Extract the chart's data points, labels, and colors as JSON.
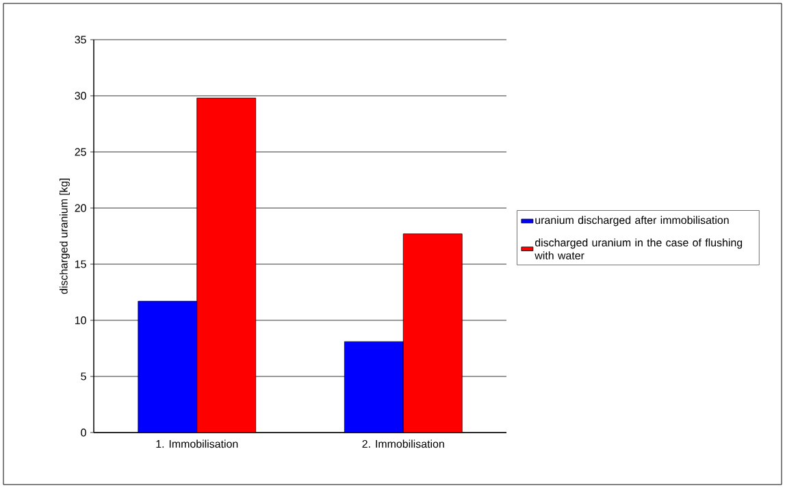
{
  "chart_data": {
    "type": "bar",
    "ylabel": "discharged uranium [kg]",
    "categories": [
      "1. Immobilisation",
      "2. Immobilisation"
    ],
    "series": [
      {
        "name": "uranium discharged after immobilisation",
        "color": "#0000ff",
        "values": [
          11.7,
          8.1
        ]
      },
      {
        "name": "discharged uranium in the case of flushing with water",
        "color": "#ff0000",
        "values": [
          29.8,
          17.7
        ]
      }
    ],
    "ylim": [
      0,
      35
    ],
    "yticks": [
      0,
      5,
      10,
      15,
      20,
      25,
      30,
      35
    ],
    "grid": "y",
    "legend": "right"
  }
}
